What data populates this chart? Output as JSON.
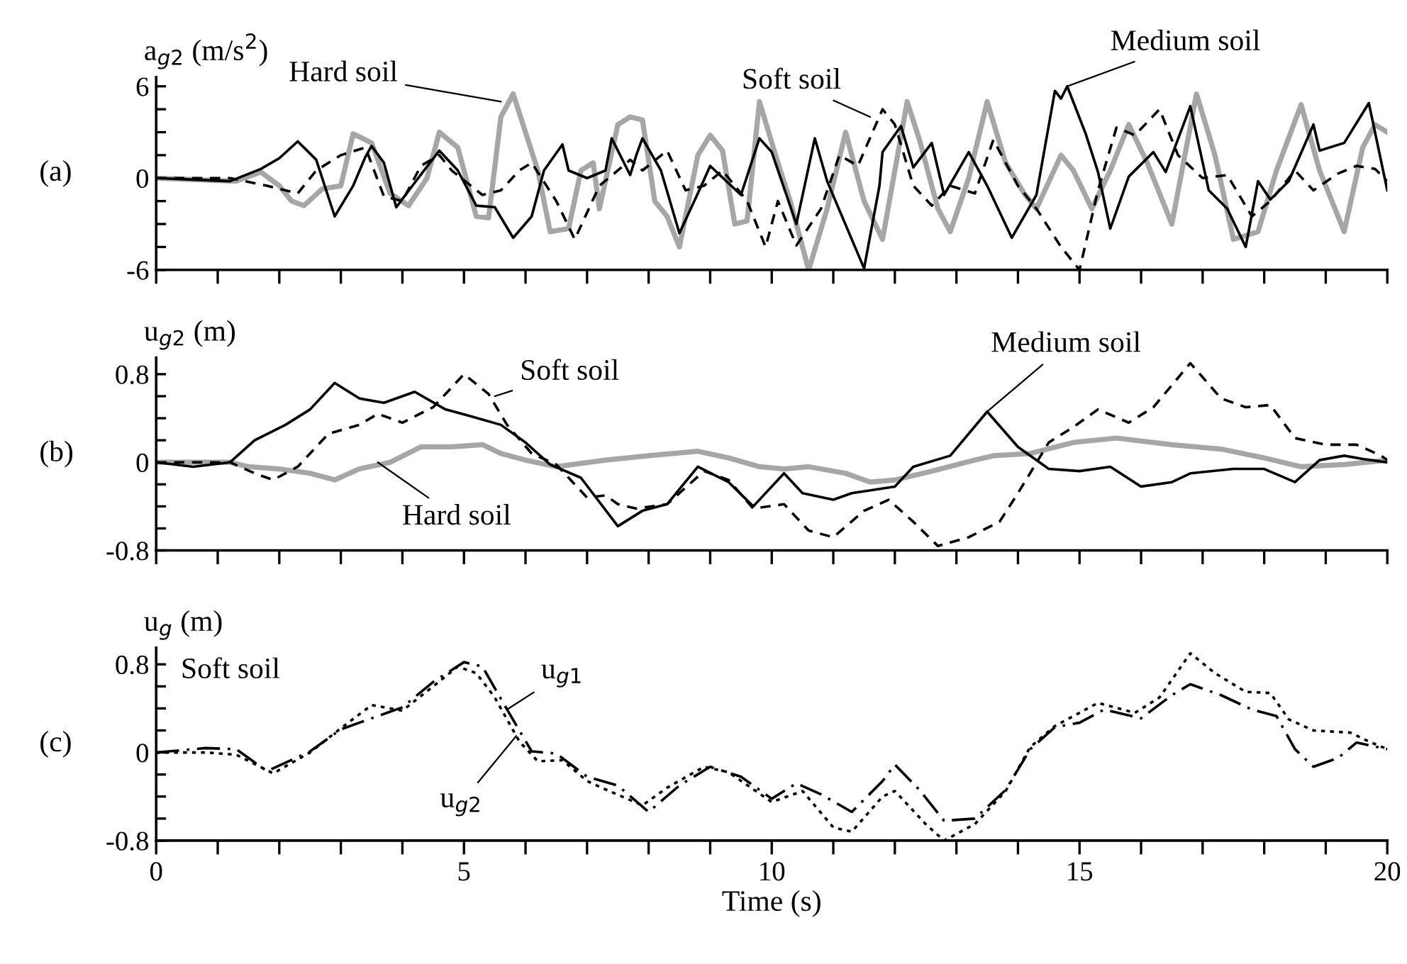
{
  "chart_data": [
    {
      "type": "line",
      "title": "(a)",
      "ylabel": "a$_{g2}$ (m/s$^{2}$)",
      "tick_labels": "y",
      "grid": false,
      "legend": false,
      "marker": "none",
      "xlim": [
        0,
        20
      ],
      "ylim": [
        -6,
        6.6
      ],
      "xticks": [
        {
          "value": 0,
          "label": null
        },
        {
          "value": 1,
          "label": null
        },
        {
          "value": 2,
          "label": null
        },
        {
          "value": 3,
          "label": null
        },
        {
          "value": 4,
          "label": null
        },
        {
          "value": 5,
          "label": null
        },
        {
          "value": 6,
          "label": null
        },
        {
          "value": 7,
          "label": null
        },
        {
          "value": 8,
          "label": null
        },
        {
          "value": 9,
          "label": null
        },
        {
          "value": 10,
          "label": null
        },
        {
          "value": 11,
          "label": null
        },
        {
          "value": 12,
          "label": null
        },
        {
          "value": 13,
          "label": null
        },
        {
          "value": 14,
          "label": null
        },
        {
          "value": 15,
          "label": null
        },
        {
          "value": 16,
          "label": null
        },
        {
          "value": 17,
          "label": null
        },
        {
          "value": 18,
          "label": null
        },
        {
          "value": 19,
          "label": null
        },
        {
          "value": 20,
          "label": null
        }
      ],
      "yticks": [
        -6,
        {
          "value": -4.5,
          "label": null
        },
        {
          "value": -3,
          "label": null
        },
        {
          "value": -1.5,
          "label": null
        },
        0,
        {
          "value": 1.5,
          "label": null
        },
        {
          "value": 3,
          "label": null
        },
        {
          "value": 4.5,
          "label": null
        },
        6
      ],
      "series": [
        {
          "color": "#a6a6a6",
          "line_style": "solid",
          "x": [
            0,
            1.3,
            1.7,
            2.0,
            2.2,
            2.4,
            2.7,
            3.0,
            3.2,
            3.5,
            3.8,
            4.1,
            4.4,
            4.6,
            4.9,
            5.2,
            5.4,
            5.6,
            5.8,
            6.2,
            6.4,
            6.7,
            6.9,
            7.1,
            7.2,
            7.5,
            7.7,
            7.9,
            8.1,
            8.3,
            8.5,
            8.8,
            9.0,
            9.2,
            9.4,
            9.6,
            9.8,
            10.1,
            10.3,
            10.6,
            10.9,
            11.2,
            11.5,
            11.8,
            12.2,
            12.4,
            12.7,
            12.9,
            13.2,
            13.5,
            13.8,
            14.1,
            14.3,
            14.7,
            14.9,
            15.2,
            15.5,
            15.8,
            16.1,
            16.5,
            16.9,
            17.2,
            17.5,
            17.9,
            18.2,
            18.6,
            18.9,
            19.3,
            19.6,
            19.8,
            20
          ],
          "values": [
            0,
            -0.2,
            0.4,
            -0.5,
            -1.5,
            -1.8,
            -0.7,
            -0.5,
            2.9,
            2.3,
            -1.0,
            -1.8,
            0,
            3.0,
            2.0,
            -2.5,
            -2.6,
            4.0,
            5.5,
            0.5,
            -3.5,
            -3.3,
            0.5,
            1.0,
            -2.0,
            3.5,
            4.0,
            3.8,
            -1.5,
            -2.5,
            -4.5,
            1.5,
            2.8,
            1.8,
            -3.0,
            -2.8,
            5.0,
            1.0,
            -1.5,
            -6.0,
            -2.0,
            3.0,
            -1.5,
            -4.0,
            5.0,
            2.5,
            -2.0,
            -3.5,
            0,
            5.0,
            1.0,
            -1.0,
            -2.0,
            1.5,
            0.5,
            -2.0,
            0.5,
            3.5,
            1.0,
            -3.0,
            5.5,
            1.5,
            -4.0,
            -3.5,
            0.5,
            4.8,
            0.5,
            -3.5,
            2.0,
            3.5,
            3.0
          ]
        },
        {
          "color": "#000000",
          "line_style": "dashed",
          "x": [
            0,
            1.2,
            1.8,
            2.3,
            2.6,
            3.0,
            3.4,
            3.7,
            4.0,
            4.3,
            4.6,
            4.8,
            5.3,
            5.6,
            5.9,
            6.1,
            6.5,
            6.8,
            7.2,
            7.5,
            7.7,
            7.9,
            8.3,
            8.6,
            8.9,
            9.2,
            9.6,
            9.9,
            10.1,
            10.4,
            10.8,
            11.1,
            11.4,
            11.8,
            12.0,
            12.3,
            12.6,
            12.9,
            13.3,
            13.6,
            14.0,
            14.3,
            14.7,
            15.0,
            15.3,
            15.6,
            15.9,
            16.3,
            16.6,
            17.0,
            17.4,
            17.8,
            18.1,
            18.5,
            18.8,
            19.2,
            19.5,
            19.8,
            20
          ],
          "values": [
            0,
            0,
            -0.5,
            -1.0,
            0.5,
            1.5,
            2.0,
            -1.2,
            -1.5,
            0.8,
            1.5,
            0.5,
            -1.1,
            -0.8,
            0.5,
            1.0,
            -1.5,
            -4.0,
            -0.5,
            0.5,
            1.2,
            0.5,
            1.8,
            -0.8,
            -0.5,
            0.5,
            -1.5,
            -4.5,
            -1.5,
            -4.4,
            -2.0,
            1.5,
            0.8,
            4.5,
            3.5,
            -0.5,
            -1.8,
            -0.5,
            -1.0,
            2.5,
            -0.5,
            -2.0,
            -4.5,
            -6.0,
            -0.8,
            3.3,
            2.8,
            4.5,
            1.5,
            0,
            0.2,
            -2.5,
            -1.5,
            0.5,
            -0.8,
            0.3,
            0.8,
            0.6,
            -0.2
          ]
        },
        {
          "color": "#000000",
          "line_style": "solid",
          "x": [
            0,
            1.2,
            1.7,
            2.0,
            2.3,
            2.6,
            2.9,
            3.2,
            3.4,
            3.5,
            3.7,
            3.9,
            4.2,
            4.6,
            4.9,
            5.2,
            5.5,
            5.8,
            6.1,
            6.3,
            6.6,
            6.7,
            7.0,
            7.3,
            7.4,
            7.7,
            7.8,
            7.9,
            8.2,
            8.5,
            8.8,
            9.0,
            9.5,
            9.8,
            10.0,
            10.4,
            10.7,
            10.9,
            11.5,
            11.75,
            11.8,
            12.1,
            12.3,
            12.6,
            12.8,
            13.2,
            13.5,
            13.9,
            14.3,
            14.6,
            14.7,
            14.8,
            15.1,
            15.3,
            15.5,
            15.8,
            16.2,
            16.4,
            16.8,
            17.1,
            17.4,
            17.7,
            17.9,
            18.1,
            18.4,
            18.8,
            18.9,
            19.3,
            19.7,
            20
          ],
          "values": [
            0,
            -0.2,
            0.6,
            1.3,
            2.4,
            1.2,
            -2.5,
            -0.5,
            1.4,
            2.1,
            1.0,
            -1.9,
            -0.3,
            1.8,
            0.5,
            -1.8,
            -1.9,
            -3.9,
            -2.5,
            0.5,
            2.2,
            0.5,
            0,
            0.5,
            2.6,
            0.2,
            1.5,
            2.6,
            0.5,
            -3.6,
            -1.0,
            0.8,
            -1.1,
            2.6,
            1.7,
            -3.0,
            2.6,
            -0.2,
            -5.9,
            -0.5,
            1.7,
            3.4,
            0.7,
            2.3,
            -1.1,
            1.7,
            -0.5,
            -3.9,
            -1.1,
            5.7,
            5.2,
            6.0,
            2.9,
            0.4,
            -3.3,
            0.1,
            1.7,
            0.4,
            4.7,
            -0.8,
            -2.0,
            -4.5,
            -0.2,
            -1.4,
            -0.2,
            3.5,
            1.8,
            2.3,
            4.9,
            -0.8
          ]
        }
      ],
      "annotations": [
        {
          "text": "Hard soil",
          "x": 5.6,
          "y": 5.0
        },
        {
          "text": "Soft soil",
          "x": 11.6,
          "y": 4.0
        },
        {
          "text": "Medium soil",
          "x": 14.8,
          "y": 6.0
        }
      ]
    },
    {
      "type": "line",
      "title": "(b)",
      "ylabel": "u$_{g2}$ (m)",
      "tick_labels": "y",
      "grid": false,
      "legend": false,
      "marker": "none",
      "xlim": [
        0,
        20
      ],
      "ylim": [
        -0.8,
        0.95
      ],
      "xticks": [
        {
          "value": 0,
          "label": null
        },
        {
          "value": 1,
          "label": null
        },
        {
          "value": 2,
          "label": null
        },
        {
          "value": 3,
          "label": null
        },
        {
          "value": 4,
          "label": null
        },
        {
          "value": 5,
          "label": null
        },
        {
          "value": 6,
          "label": null
        },
        {
          "value": 7,
          "label": null
        },
        {
          "value": 8,
          "label": null
        },
        {
          "value": 9,
          "label": null
        },
        {
          "value": 10,
          "label": null
        },
        {
          "value": 11,
          "label": null
        },
        {
          "value": 12,
          "label": null
        },
        {
          "value": 13,
          "label": null
        },
        {
          "value": 14,
          "label": null
        },
        {
          "value": 15,
          "label": null
        },
        {
          "value": 16,
          "label": null
        },
        {
          "value": 17,
          "label": null
        },
        {
          "value": 18,
          "label": null
        },
        {
          "value": 19,
          "label": null
        },
        {
          "value": 20,
          "label": null
        }
      ],
      "yticks": [
        {
          "value": -0.8,
          "label": "-0.8"
        },
        {
          "value": -0.6,
          "label": null
        },
        {
          "value": -0.4,
          "label": null
        },
        {
          "value": -0.2,
          "label": null
        },
        0,
        {
          "value": 0.2,
          "label": null
        },
        {
          "value": 0.4,
          "label": null
        },
        {
          "value": 0.6,
          "label": null
        },
        0.8
      ],
      "series": [
        {
          "color": "#a6a6a6",
          "line_style": "solid",
          "x": [
            0,
            1.2,
            1.5,
            2.0,
            2.5,
            2.9,
            3.3,
            3.8,
            4.3,
            4.8,
            5.3,
            5.6,
            6.0,
            6.5,
            7.3,
            8.0,
            8.8,
            9.3,
            9.8,
            10.2,
            10.6,
            11.2,
            11.6,
            12.0,
            12.6,
            13.3,
            13.6,
            14.2,
            14.9,
            15.6,
            16.5,
            17.3,
            18.0,
            18.6,
            19.3,
            20
          ],
          "values": [
            0,
            0,
            -0.04,
            -0.06,
            -0.1,
            -0.16,
            -0.06,
            0,
            0.14,
            0.14,
            0.16,
            0.08,
            0.02,
            -0.04,
            0.02,
            0.06,
            0.1,
            0.04,
            -0.04,
            -0.06,
            -0.04,
            -0.1,
            -0.18,
            -0.16,
            -0.08,
            0.02,
            0.06,
            0.08,
            0.18,
            0.22,
            0.16,
            0.12,
            0.04,
            -0.04,
            -0.02,
            0.02
          ]
        },
        {
          "color": "#000000",
          "line_style": "dashed",
          "x": [
            0,
            1.2,
            1.6,
            1.9,
            2.3,
            2.8,
            3.3,
            3.6,
            4.0,
            4.5,
            5.0,
            5.4,
            5.7,
            6.1,
            6.5,
            7.0,
            7.3,
            7.5,
            7.8,
            8.3,
            8.9,
            9.3,
            9.7,
            10.2,
            10.6,
            11.0,
            11.5,
            11.9,
            12.3,
            12.7,
            13.2,
            13.7,
            14.0,
            14.5,
            14.9,
            15.3,
            15.8,
            16.2,
            16.8,
            17.3,
            17.7,
            18.1,
            18.5,
            19.0,
            19.5,
            19.9,
            20
          ],
          "values": [
            0,
            0,
            -0.1,
            -0.16,
            -0.04,
            0.26,
            0.34,
            0.44,
            0.36,
            0.5,
            0.8,
            0.62,
            0.34,
            0.08,
            -0.02,
            -0.32,
            -0.3,
            -0.38,
            -0.42,
            -0.38,
            -0.08,
            -0.16,
            -0.42,
            -0.38,
            -0.62,
            -0.68,
            -0.44,
            -0.34,
            -0.54,
            -0.76,
            -0.68,
            -0.54,
            -0.28,
            0.18,
            0.32,
            0.48,
            0.36,
            0.5,
            0.9,
            0.58,
            0.5,
            0.52,
            0.22,
            0.16,
            0.16,
            0.06,
            0.02
          ]
        },
        {
          "color": "#000000",
          "line_style": "solid",
          "x": [
            0,
            0.6,
            1.2,
            1.6,
            2.1,
            2.5,
            2.9,
            3.3,
            3.7,
            4.2,
            4.7,
            5.1,
            5.6,
            6.0,
            6.4,
            6.9,
            7.5,
            7.9,
            8.3,
            8.8,
            9.3,
            9.7,
            10.2,
            10.5,
            11.0,
            11.3,
            12.0,
            12.3,
            12.9,
            13.5,
            14.0,
            14.5,
            15.0,
            15.5,
            16.0,
            16.5,
            16.8,
            17.5,
            18.0,
            18.5,
            18.9,
            19.3,
            19.6,
            20
          ],
          "values": [
            0,
            -0.04,
            0,
            0.2,
            0.34,
            0.48,
            0.72,
            0.58,
            0.54,
            0.64,
            0.48,
            0.42,
            0.34,
            0.18,
            -0.02,
            -0.14,
            -0.58,
            -0.44,
            -0.38,
            -0.04,
            -0.18,
            -0.4,
            -0.1,
            -0.28,
            -0.34,
            -0.28,
            -0.22,
            -0.04,
            0.06,
            0.46,
            0.14,
            -0.06,
            -0.08,
            -0.04,
            -0.22,
            -0.18,
            -0.1,
            -0.06,
            -0.06,
            -0.18,
            0.02,
            0.06,
            0.03,
            0.0
          ]
        }
      ],
      "annotations": [
        {
          "text": "Soft soil",
          "x": 5.5,
          "y": 0.6
        },
        {
          "text": "Hard soil",
          "x": 3.6,
          "y": 0.0
        },
        {
          "text": "Medium soil",
          "x": 13.5,
          "y": 0.46
        }
      ]
    },
    {
      "type": "line",
      "title": "(c)",
      "ylabel": "u$_{g}$ (m)",
      "xlabel": "Time (s)",
      "grid": false,
      "legend": false,
      "marker": "none",
      "xlim": [
        0,
        20
      ],
      "ylim": [
        -0.8,
        0.95
      ],
      "xticks": [
        0,
        {
          "value": 1,
          "label": null
        },
        {
          "value": 2,
          "label": null
        },
        {
          "value": 3,
          "label": null
        },
        {
          "value": 4,
          "label": null
        },
        5,
        {
          "value": 6,
          "label": null
        },
        {
          "value": 7,
          "label": null
        },
        {
          "value": 8,
          "label": null
        },
        {
          "value": 9,
          "label": null
        },
        10,
        {
          "value": 11,
          "label": null
        },
        {
          "value": 12,
          "label": null
        },
        {
          "value": 13,
          "label": null
        },
        {
          "value": 14,
          "label": null
        },
        15,
        {
          "value": 16,
          "label": null
        },
        {
          "value": 17,
          "label": null
        },
        {
          "value": 18,
          "label": null
        },
        {
          "value": 19,
          "label": null
        },
        20
      ],
      "yticks": [
        {
          "value": -0.8,
          "label": "-0.8"
        },
        {
          "value": -0.6,
          "label": null
        },
        {
          "value": -0.4,
          "label": null
        },
        {
          "value": -0.2,
          "label": null
        },
        0,
        {
          "value": 0.2,
          "label": null
        },
        {
          "value": 0.4,
          "label": null
        },
        {
          "value": 0.6,
          "label": null
        },
        0.8
      ],
      "series": [
        {
          "color": "#000000",
          "line_style": "dashdot",
          "x": [
            0,
            0.8,
            1.3,
            1.8,
            2.5,
            3.0,
            3.5,
            4.0,
            4.5,
            5.0,
            5.3,
            5.7,
            6.1,
            6.5,
            7.0,
            7.5,
            8.0,
            8.5,
            9.0,
            9.5,
            10.0,
            10.4,
            10.8,
            11.3,
            11.8,
            12.0,
            12.4,
            12.8,
            13.3,
            13.8,
            14.2,
            14.6,
            15.0,
            15.4,
            16.0,
            16.5,
            16.8,
            17.3,
            17.8,
            18.2,
            18.5,
            18.8,
            19.2,
            19.5,
            20
          ],
          "values": [
            0,
            0.04,
            0.03,
            -0.17,
            0.01,
            0.21,
            0.31,
            0.41,
            0.64,
            0.82,
            0.78,
            0.39,
            0.01,
            -0.01,
            -0.22,
            -0.3,
            -0.54,
            -0.3,
            -0.13,
            -0.22,
            -0.42,
            -0.28,
            -0.38,
            -0.54,
            -0.26,
            -0.11,
            -0.34,
            -0.62,
            -0.6,
            -0.34,
            0.03,
            0.23,
            0.27,
            0.39,
            0.31,
            0.52,
            0.62,
            0.52,
            0.39,
            0.33,
            0.03,
            -0.13,
            -0.05,
            0.09,
            0.03
          ]
        },
        {
          "color": "#000000",
          "line_style": "dotted",
          "x": [
            0,
            0.8,
            1.3,
            1.9,
            2.5,
            3.0,
            3.5,
            4.0,
            4.5,
            4.9,
            5.2,
            5.5,
            5.9,
            6.2,
            6.6,
            7.0,
            7.4,
            7.9,
            8.3,
            8.9,
            9.3,
            10.0,
            10.5,
            11.0,
            11.3,
            11.8,
            12.0,
            12.5,
            12.8,
            13.3,
            13.8,
            14.2,
            14.6,
            15.3,
            15.9,
            16.3,
            16.8,
            17.2,
            17.7,
            18.1,
            18.4,
            18.8,
            19.4,
            19.7,
            20
          ],
          "values": [
            0,
            0.0,
            -0.02,
            -0.19,
            0.0,
            0.22,
            0.43,
            0.38,
            0.6,
            0.78,
            0.72,
            0.5,
            0.1,
            -0.08,
            -0.07,
            -0.26,
            -0.36,
            -0.48,
            -0.32,
            -0.13,
            -0.18,
            -0.45,
            -0.35,
            -0.68,
            -0.72,
            -0.4,
            -0.35,
            -0.65,
            -0.8,
            -0.65,
            -0.35,
            0.05,
            0.24,
            0.45,
            0.36,
            0.5,
            0.9,
            0.72,
            0.55,
            0.54,
            0.3,
            0.2,
            0.18,
            0.1,
            0.03
          ]
        }
      ],
      "annotations": [
        "Soft soil",
        {
          "text": "u$_{g1}$",
          "x": 5.7,
          "y": 0.39
        },
        {
          "text": "u$_{g2}$",
          "x": 5.85,
          "y": 0.15
        }
      ]
    }
  ]
}
